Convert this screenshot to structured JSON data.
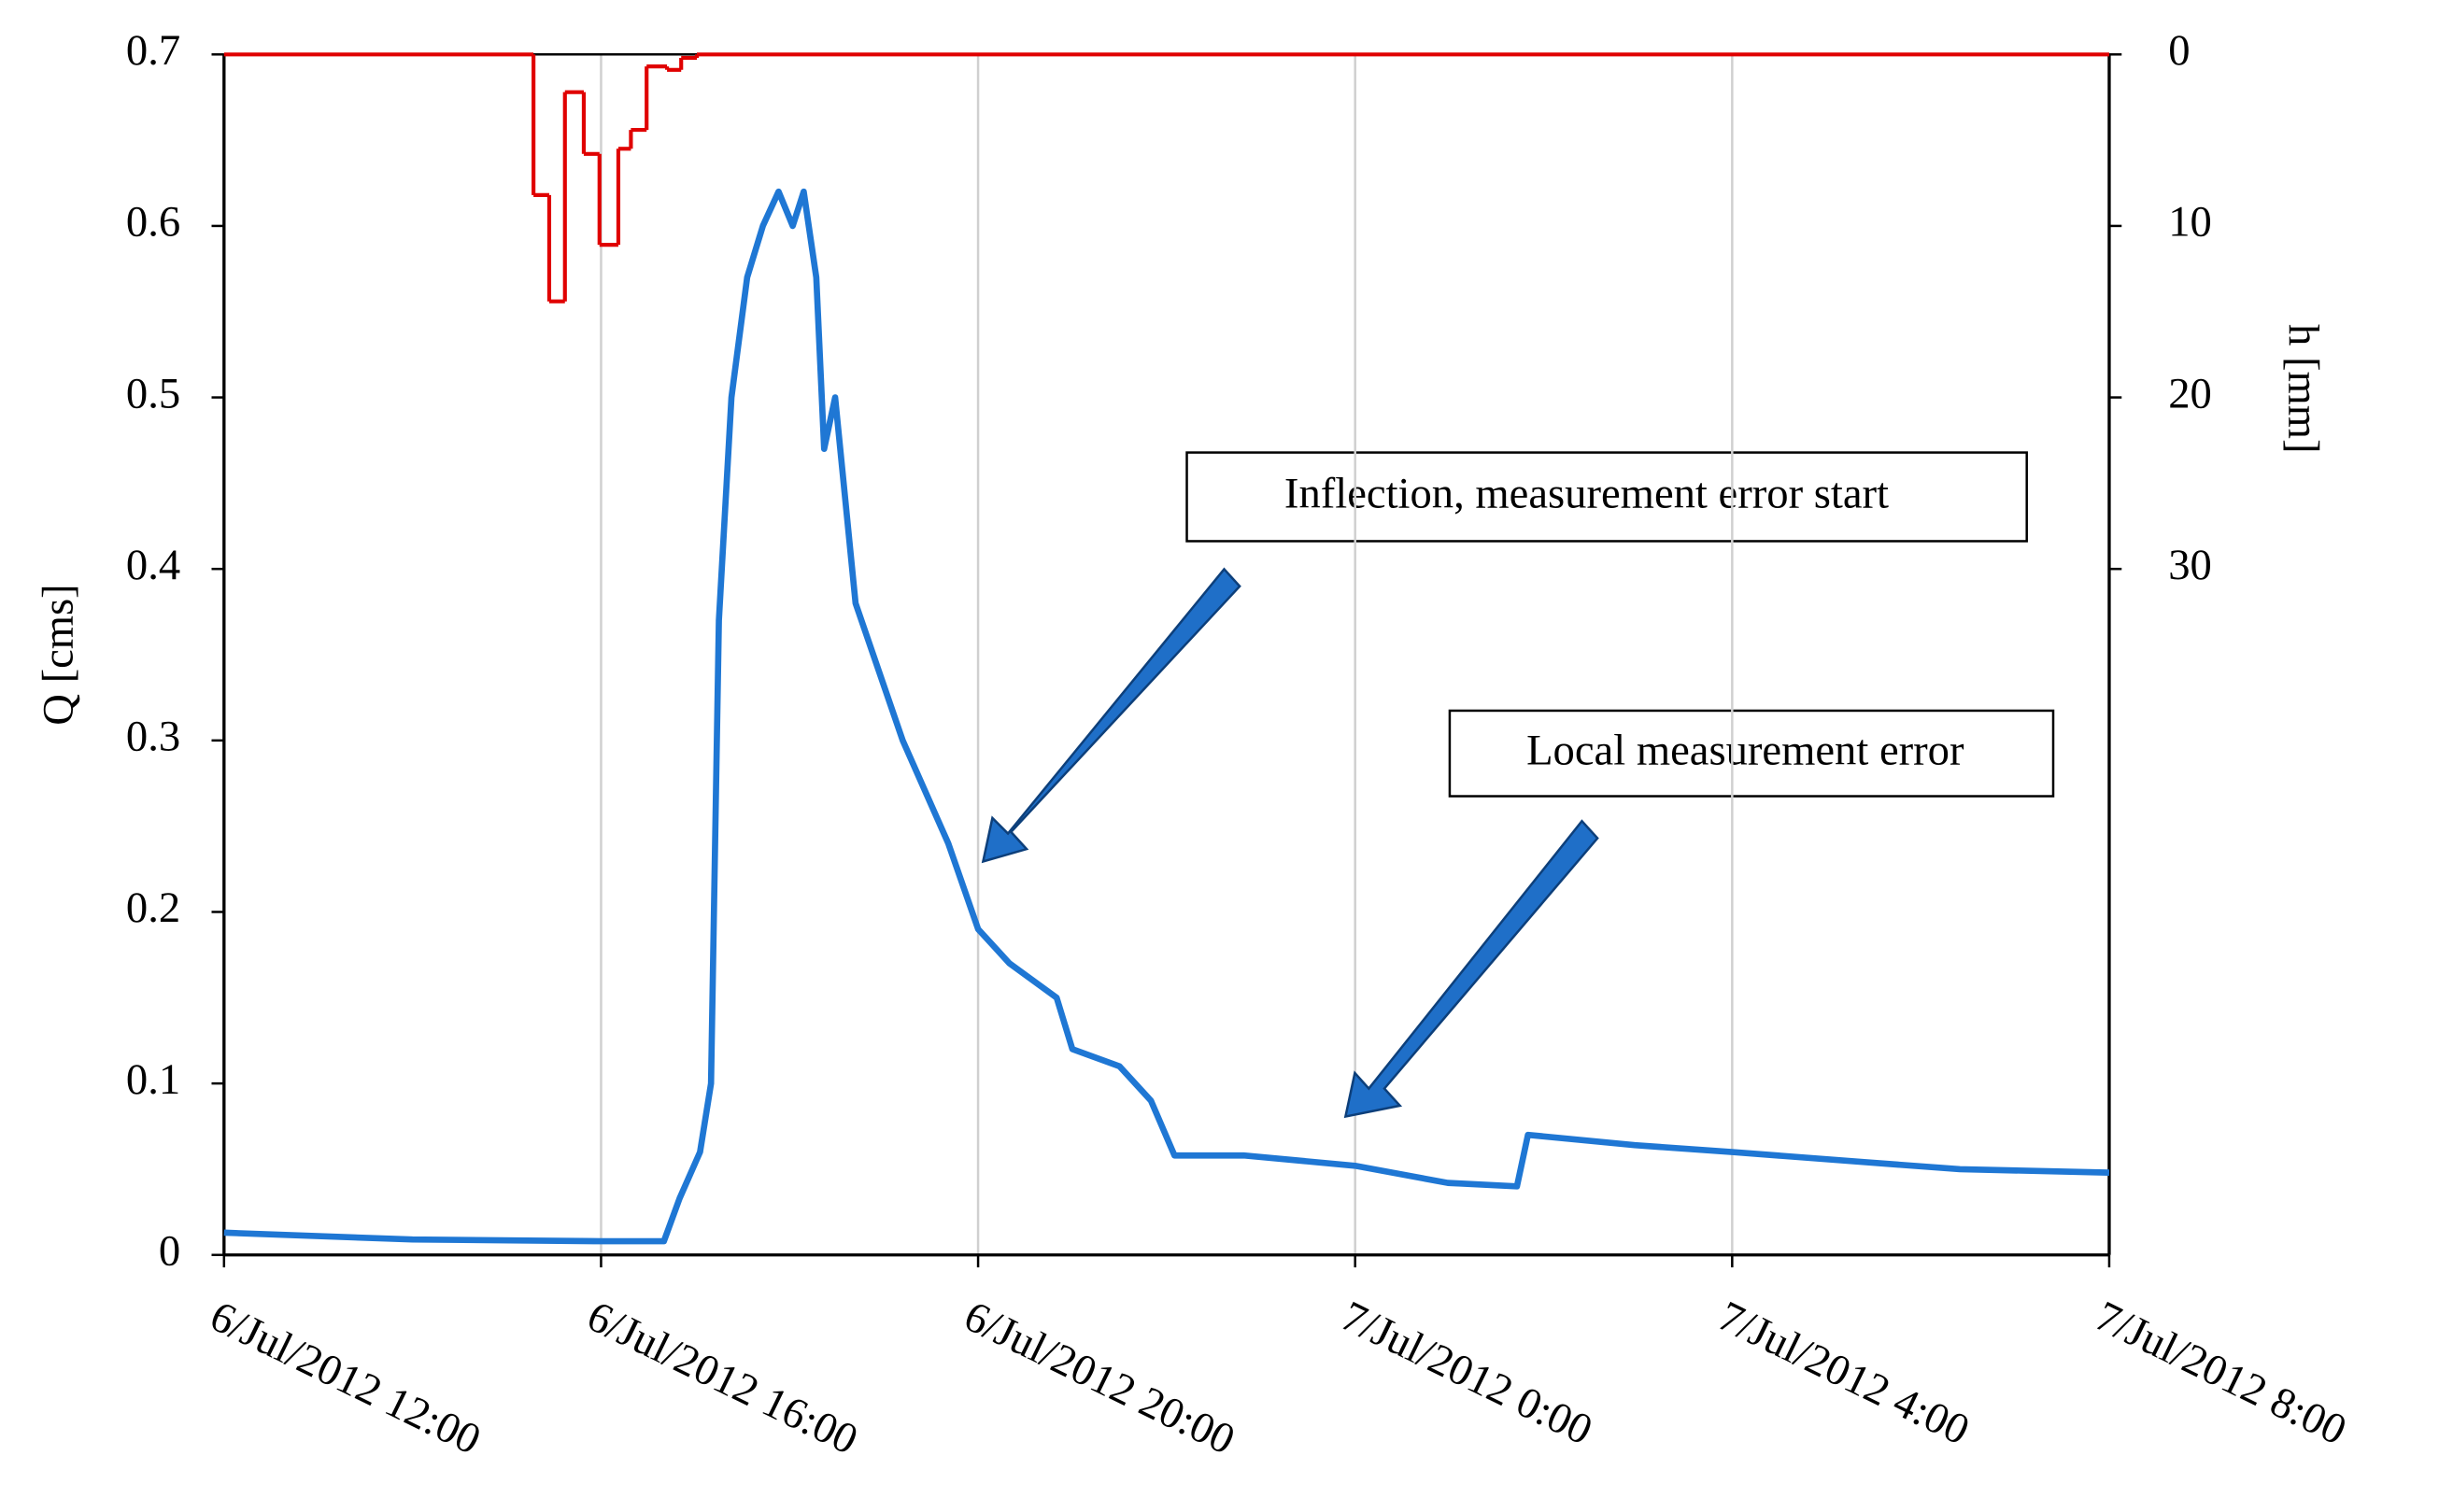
{
  "chart_data": {
    "type": "line",
    "ylabel": "Q [cms]",
    "y2label": "h [mm]",
    "ylim": [
      0,
      0.7
    ],
    "yticks": [
      0,
      0.1,
      0.2,
      0.3,
      0.4,
      0.5,
      0.6,
      0.7
    ],
    "y2lim": [
      70,
      0
    ],
    "y2ticks": [
      0,
      10,
      20,
      30
    ],
    "xlim": [
      "6/Jul/2012 12:00",
      "7/Jul/2012 8:00"
    ],
    "xticks": [
      "6/Jul/2012 12:00",
      "6/Jul/2012 16:00",
      "6/Jul/2012 20:00",
      "7/Jul/2012 0:00",
      "7/Jul/2012 4:00",
      "7/Jul/2012 8:00"
    ],
    "grid": "x",
    "series": [
      {
        "name": "Q",
        "color": "#1f77d4",
        "style": "line",
        "x": [
          "6/Jul/2012 12:00",
          "6/Jul/2012 14:00",
          "6/Jul/2012 16:00",
          "6/Jul/2012 16:40",
          "6/Jul/2012 16:50",
          "6/Jul/2012 17:03",
          "6/Jul/2012 17:10",
          "6/Jul/2012 17:15",
          "6/Jul/2012 17:23",
          "6/Jul/2012 17:33",
          "6/Jul/2012 17:43",
          "6/Jul/2012 17:53",
          "6/Jul/2012 18:02",
          "6/Jul/2012 18:09",
          "6/Jul/2012 18:17",
          "6/Jul/2012 18:22",
          "6/Jul/2012 18:29",
          "6/Jul/2012 18:42",
          "6/Jul/2012 19:12",
          "6/Jul/2012 19:41",
          "6/Jul/2012 20:00",
          "6/Jul/2012 20:20",
          "6/Jul/2012 20:50",
          "6/Jul/2012 21:00",
          "6/Jul/2012 21:30",
          "6/Jul/2012 21:50",
          "6/Jul/2012 22:05",
          "6/Jul/2012 22:49",
          "7/Jul/2012 0:00",
          "7/Jul/2012 0:59",
          "7/Jul/2012 1:43",
          "7/Jul/2012 1:50",
          "7/Jul/2012 2:58",
          "7/Jul/2012 4:00",
          "7/Jul/2012 5:26",
          "7/Jul/2012 6:25",
          "7/Jul/2012 8:00"
        ],
        "values": [
          0.013,
          0.009,
          0.008,
          0.008,
          0.033,
          0.06,
          0.1,
          0.37,
          0.5,
          0.57,
          0.6,
          0.62,
          0.6,
          0.62,
          0.57,
          0.47,
          0.5,
          0.38,
          0.3,
          0.24,
          0.19,
          0.17,
          0.15,
          0.12,
          0.11,
          0.09,
          0.058,
          0.058,
          0.052,
          0.042,
          0.04,
          0.07,
          0.064,
          0.06,
          0.054,
          0.05,
          0.048
        ]
      },
      {
        "name": "h",
        "color": "#e00000",
        "style": "step",
        "axis": "y2",
        "x": [
          "6/Jul/2012 12:00",
          "6/Jul/2012 15:17",
          "6/Jul/2012 15:27",
          "6/Jul/2012 15:37",
          "6/Jul/2012 15:49",
          "6/Jul/2012 15:59",
          "6/Jul/2012 16:11",
          "6/Jul/2012 16:19",
          "6/Jul/2012 16:29",
          "6/Jul/2012 16:42",
          "6/Jul/2012 16:51",
          "6/Jul/2012 17:01",
          "7/Jul/2012 8:00"
        ],
        "values": [
          0,
          8.2,
          14.4,
          2.2,
          5.8,
          11.1,
          5.5,
          4.4,
          0.7,
          0.9,
          0.2,
          0,
          0
        ]
      }
    ],
    "annotations": [
      {
        "text": "Inflection, measurement error start"
      },
      {
        "text": "Local measurement error"
      }
    ]
  }
}
